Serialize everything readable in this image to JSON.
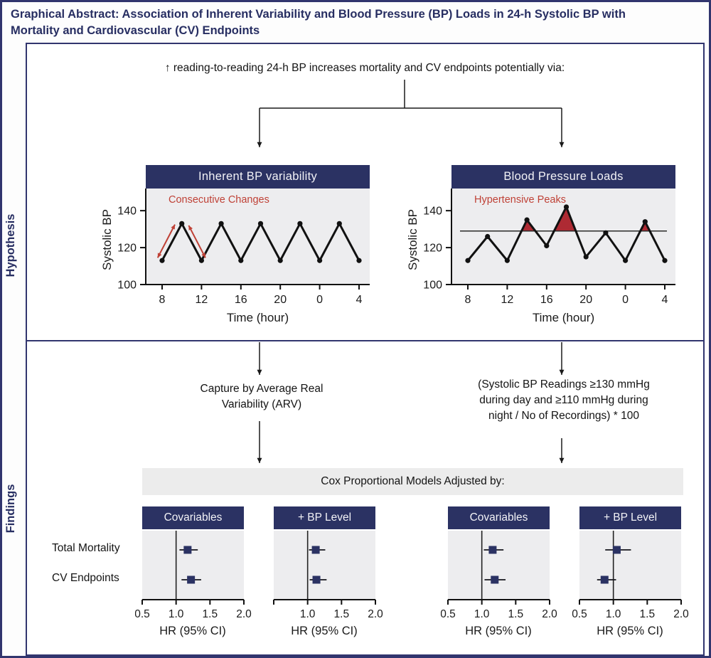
{
  "title": "Graphical Abstract: Association of Inherent Variability and Blood Pressure (BP) Loads in 24-h Systolic BP with\nMortality and Cardiovascular (CV) Endpoints",
  "sections": {
    "hypothesis_label": "Hypothesis",
    "findings_label": "Findings"
  },
  "hypothesis": {
    "statement": "↑ reading-to-reading 24-h BP increases mortality and CV endpoints potentially via:"
  },
  "findings": {
    "arv_text": "Capture by Average Real\nVariability (ARV)",
    "load_text": "(Systolic BP Readings ≥130 mmHg\nduring day and ≥110 mmHg  during\nnight / No of Recordings) * 100",
    "cox_bar": "Cox Proportional Models Adjusted by:",
    "row_labels": [
      "Total Mortality",
      "CV Endpoints"
    ]
  },
  "colors": {
    "navy": "#2b3263",
    "border_navy": "#31356e",
    "title_navy": "#272e62",
    "red": "#bf4136",
    "red_fill": "#ae2a33",
    "plot_bg": "#ededef",
    "bar_bg": "#ececec",
    "line_black": "#111111"
  },
  "chart_data": [
    {
      "type": "line",
      "id": "bp-variability",
      "title": "Inherent BP variability",
      "annotation": "Consecutive Changes",
      "xlabel": "Time (hour)",
      "ylabel": "Systolic BP",
      "x": [
        8,
        10,
        12,
        14,
        16,
        18,
        20,
        22,
        24,
        26,
        28
      ],
      "values": [
        113,
        133,
        113,
        133,
        113,
        133,
        113,
        133,
        113,
        133,
        113
      ],
      "xtick_values": [
        8,
        12,
        16,
        20,
        24,
        28
      ],
      "xtick_labels": [
        "8",
        "12",
        "16",
        "20",
        "0",
        "4"
      ],
      "ytick_values": [
        100,
        120,
        140
      ],
      "ytick_labels": [
        "100",
        "120",
        "140"
      ],
      "ylim": [
        100,
        152
      ],
      "annotation_arrows": [
        {
          "x1": 7.55,
          "y1": 114.5,
          "x2": 9.3,
          "y2": 132.5
        },
        {
          "x1": 10.7,
          "y1": 132.0,
          "x2": 12.4,
          "y2": 114.5
        }
      ]
    },
    {
      "type": "line",
      "id": "bp-loads",
      "title": "Blood Pressure Loads",
      "annotation": "Hypertensive Peaks",
      "xlabel": "Time (hour)",
      "ylabel": "Systolic BP",
      "threshold": 129,
      "x": [
        8,
        10,
        12,
        14,
        16,
        18,
        20,
        22,
        24,
        26,
        28
      ],
      "values": [
        113,
        126,
        113,
        135,
        121,
        142,
        115,
        128,
        113,
        134,
        113
      ],
      "xtick_values": [
        8,
        12,
        16,
        20,
        24,
        28
      ],
      "xtick_labels": [
        "8",
        "12",
        "16",
        "20",
        "0",
        "4"
      ],
      "ytick_values": [
        100,
        120,
        140
      ],
      "ytick_labels": [
        "100",
        "120",
        "140"
      ],
      "ylim": [
        100,
        152
      ]
    },
    {
      "type": "forest",
      "id": "forest-arv-covariables",
      "group": "ARV",
      "title": "Covariables",
      "ref": 1.0,
      "xlim": [
        0.5,
        2.0
      ],
      "xtick_values": [
        0.5,
        1.0,
        1.5,
        2.0
      ],
      "xtick_labels": [
        "0.5",
        "1.0",
        "1.5",
        "2.0"
      ],
      "xlabel": "HR (95% CI)",
      "rows": [
        {
          "label": "Total Mortality",
          "hr": 1.17,
          "lo": 1.05,
          "hi": 1.32
        },
        {
          "label": "CV Endpoints",
          "hr": 1.22,
          "lo": 1.08,
          "hi": 1.37
        }
      ]
    },
    {
      "type": "forest",
      "id": "forest-arv-bplevel",
      "group": "ARV",
      "title": "+ BP Level",
      "ref": 1.0,
      "xlim": [
        0.5,
        2.0
      ],
      "xtick_values": [
        0.5,
        1.0,
        1.5,
        2.0
      ],
      "xtick_labels": [
        "",
        "1.0",
        "1.5",
        "2.0"
      ],
      "xlabel": "HR (95% CI)",
      "rows": [
        {
          "label": "Total Mortality",
          "hr": 1.12,
          "lo": 1.02,
          "hi": 1.26
        },
        {
          "label": "CV Endpoints",
          "hr": 1.13,
          "lo": 1.03,
          "hi": 1.28
        }
      ]
    },
    {
      "type": "forest",
      "id": "forest-loads-covariables",
      "group": "BP Loads",
      "title": "Covariables",
      "ref": 1.0,
      "xlim": [
        0.5,
        2.0
      ],
      "xtick_values": [
        0.5,
        1.0,
        1.5,
        2.0
      ],
      "xtick_labels": [
        "0.5",
        "1.0",
        "1.5",
        "2.0"
      ],
      "xlabel": "HR (95% CI)",
      "rows": [
        {
          "label": "Total Mortality",
          "hr": 1.16,
          "lo": 1.03,
          "hi": 1.32
        },
        {
          "label": "CV Endpoints",
          "hr": 1.19,
          "lo": 1.04,
          "hi": 1.35
        }
      ]
    },
    {
      "type": "forest",
      "id": "forest-loads-bplevel",
      "group": "BP Loads",
      "title": "+ BP Level",
      "ref": 1.0,
      "xlim": [
        0.5,
        2.0
      ],
      "xtick_values": [
        0.5,
        1.0,
        1.5,
        2.0
      ],
      "xtick_labels": [
        "0.5",
        "1.0",
        "1.5",
        "2.0"
      ],
      "xlabel": "HR (95% CI)",
      "rows": [
        {
          "label": "Total Mortality",
          "hr": 1.05,
          "lo": 0.88,
          "hi": 1.26
        },
        {
          "label": "CV Endpoints",
          "hr": 0.87,
          "lo": 0.76,
          "hi": 1.04
        }
      ]
    }
  ]
}
